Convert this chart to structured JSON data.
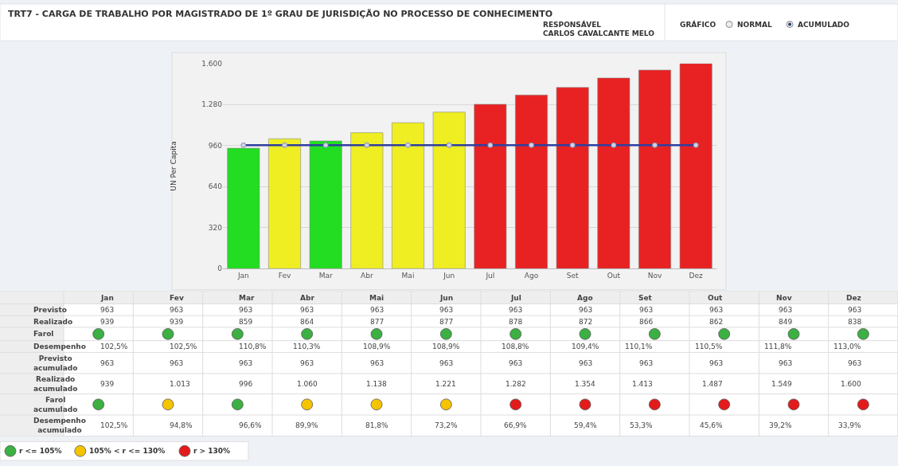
{
  "chart_data": [
    {
      "type": "bar",
      "title": "TRT7 - CARGA DE TRABALHO POR MAGISTRADO DE 1º GRAU DE JURISDIÇÃO NO PROCESSO DE CONHECIMENTO",
      "ylabel": "UN Per Capita",
      "annotations": [
        "RESPONSÁVEL",
        "CARLOS CAVALCANTE MELO",
        "GRÁFICO",
        "NORMAL",
        "ACUMULADO"
      ],
      "categories": [
        "Jan",
        "Fev",
        "Mar",
        "Abr",
        "Mai",
        "Jun",
        "Jul",
        "Ago",
        "Set",
        "Out",
        "Nov",
        "Dez"
      ],
      "series": [
        {
          "type": "bar",
          "values": [
            939,
            1013,
            996,
            1060,
            1138,
            1221,
            1282,
            1354,
            1413,
            1487,
            1549,
            1600
          ],
          "colors": [
            "#22dd22",
            "#eeee22",
            "#22dd22",
            "#eeee22",
            "#eeee22",
            "#eeee22",
            "#e82222",
            "#e82222",
            "#e82222",
            "#e82222",
            "#e82222",
            "#e82222"
          ]
        },
        {
          "type": "line",
          "values": [
            963,
            963,
            963,
            963,
            963,
            963,
            963,
            963,
            963,
            963,
            963,
            963
          ],
          "color": "#2f3f9f",
          "marker": "circle"
        }
      ],
      "ylim": [
        0,
        1600
      ],
      "yticks": [
        0,
        320,
        640,
        960,
        {
          "value": 1280,
          "label": "1.280"
        },
        {
          "value": 1600,
          "label": "1.600"
        }
      ],
      "grid": "y"
    },
    {
      "type": "other",
      "categories": [
        "Jan",
        "Fev",
        "Mar",
        "Abr",
        "Mai",
        "Jun",
        "Jul",
        "Ago",
        "Set",
        "Out",
        "Nov",
        "Dez"
      ],
      "y_categories": [
        "Previsto",
        "Realizado",
        "Farol",
        "Desempenho",
        "Previsto acumulado",
        "Realizado acumulado",
        "Farol acumulado",
        "Desempenho acumulado"
      ],
      "cell_labels": [
        [
          "963",
          "963",
          "963",
          "963",
          "963",
          "963",
          "963",
          "963",
          "963",
          "963",
          "963",
          "963"
        ],
        [
          "939",
          "939",
          "859",
          "864",
          "877",
          "877",
          "878",
          "872",
          "866",
          "862",
          "849",
          "838"
        ],
        [
          null,
          null,
          null,
          null,
          null,
          null,
          null,
          null,
          null,
          null,
          null,
          null
        ],
        [
          "102,5%",
          "102,5%",
          "110,8%",
          "110,3%",
          "108,9%",
          "108,9%",
          "108,8%",
          "109,4%",
          "110,1%",
          "110,5%",
          "111,8%",
          "113,0%"
        ],
        [
          "963",
          "963",
          "963",
          "963",
          "963",
          "963",
          "963",
          "963",
          "963",
          "963",
          "963",
          "963"
        ],
        [
          "939",
          "1.013",
          "996",
          "1.060",
          "1.138",
          "1.221",
          "1.282",
          "1.354",
          "1.413",
          "1.487",
          "1.549",
          "1.600"
        ],
        [
          null,
          null,
          null,
          null,
          null,
          null,
          null,
          null,
          null,
          null,
          null,
          null
        ],
        [
          "102,5%",
          "94,8%",
          "96,6%",
          "89,9%",
          "81,8%",
          "73,2%",
          "66,9%",
          "59,4%",
          "53,3%",
          "45,6%",
          "39,2%",
          "33,9%"
        ]
      ],
      "colors": [
        null,
        null,
        [
          "#3cb043",
          "#3cb043",
          "#3cb043",
          "#3cb043",
          "#3cb043",
          "#3cb043",
          "#3cb043",
          "#3cb043",
          "#3cb043",
          "#3cb043",
          "#3cb043",
          "#3cb043"
        ],
        null,
        null,
        null,
        [
          "#3cb043",
          "#f5c400",
          "#3cb043",
          "#f5c400",
          "#f5c400",
          "#f5c400",
          "#e31b1b",
          "#e31b1b",
          "#e31b1b",
          "#e31b1b",
          "#e31b1b",
          "#e31b1b"
        ],
        null
      ],
      "annotations": [
        "r <= 105%",
        "105% < r <= 130%",
        "r > 130%"
      ]
    }
  ]
}
